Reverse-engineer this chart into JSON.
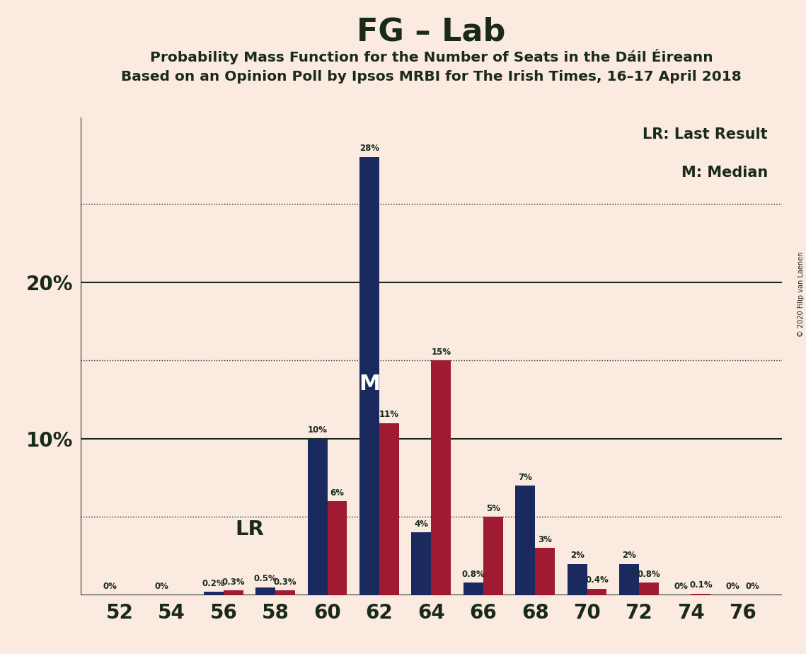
{
  "title": "FG – Lab",
  "subtitle1": "Probability Mass Function for the Number of Seats in the Dáil Éireann",
  "subtitle2": "Based on an Opinion Poll by Ipsos MRBI for The Irish Times, 16–17 April 2018",
  "copyright": "© 2020 Filip van Laenen",
  "seats": [
    52,
    54,
    56,
    58,
    60,
    62,
    64,
    66,
    68,
    70,
    72,
    74,
    76
  ],
  "blue_values": [
    0.0,
    0.0,
    0.2,
    0.5,
    10.0,
    28.0,
    4.0,
    0.8,
    7.0,
    2.0,
    2.0,
    0.0,
    0.0
  ],
  "red_values": [
    0.0,
    0.0,
    0.3,
    0.3,
    6.0,
    11.0,
    15.0,
    5.0,
    3.0,
    0.4,
    0.8,
    0.1,
    0.0
  ],
  "blue_labels": [
    "0%",
    "0%",
    "0.2%",
    "0.5%",
    "10%",
    "28%",
    "4%",
    "0.8%",
    "7%",
    "2%",
    "2%",
    "0%",
    "0%"
  ],
  "red_labels": [
    "",
    "",
    "0.3%",
    "0.3%",
    "6%",
    "11%",
    "15%",
    "5%",
    "3%",
    "0.4%",
    "0.8%",
    "0.1%",
    "0%"
  ],
  "blue_color": "#1a2a5e",
  "red_color": "#9e1b32",
  "background_color": "#faeae0",
  "text_color": "#1a2a1a",
  "lr_seat_idx": 2,
  "median_seat_idx": 5,
  "lr_label": "LR",
  "median_label": "M",
  "legend_lr": "LR: Last Result",
  "legend_m": "M: Median",
  "dotted_lines": [
    5,
    15,
    25
  ],
  "solid_lines": [
    0,
    10,
    20
  ],
  "bar_width": 0.38
}
